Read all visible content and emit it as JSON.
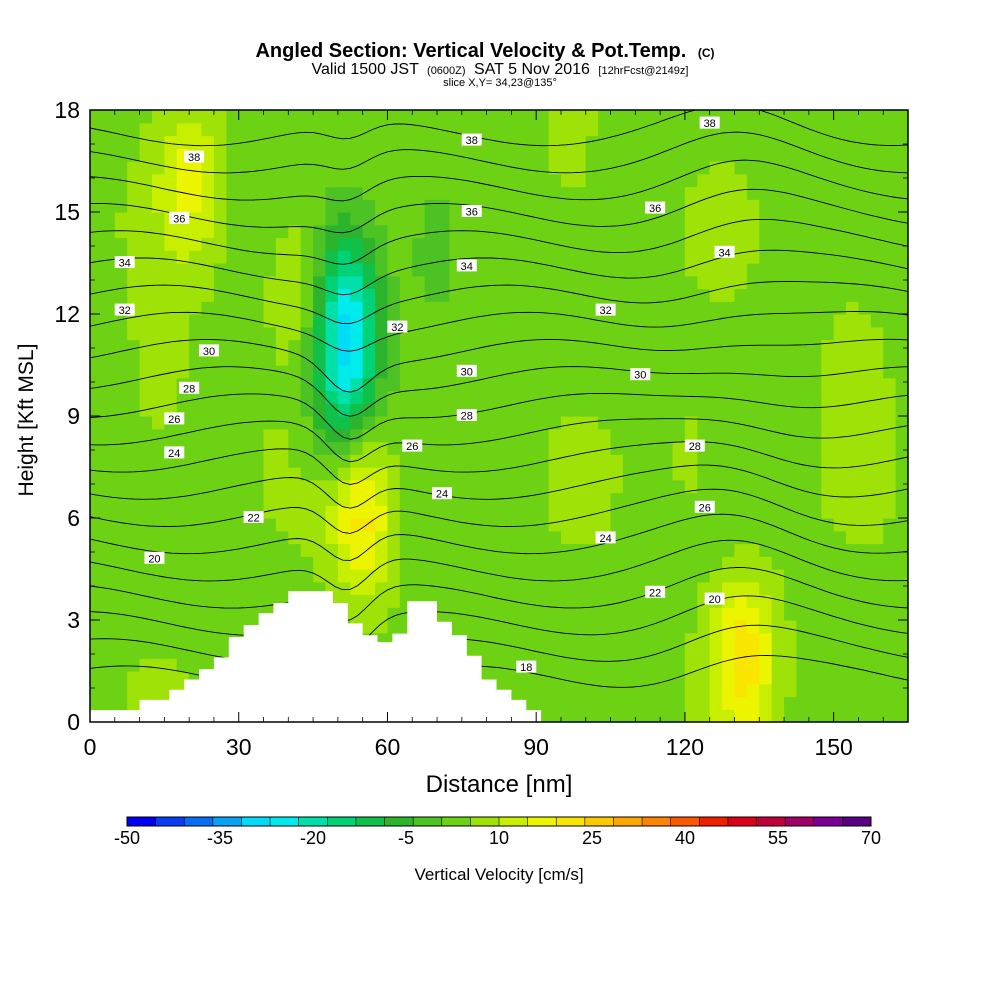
{
  "chart_data": {
    "type": "heatmap",
    "title": "Angled Section: Vertical Velocity & Pot.Temp.",
    "title_units": "(C)",
    "subtitle_parts": [
      "Valid 1500 JST",
      "(0600Z)",
      "SAT 5 Nov 2016",
      "[12hrFcst@2149z]"
    ],
    "slice_label": "slice X,Y= 34,23@135°",
    "xlabel": "Distance [nm]",
    "ylabel": "Height [Kft MSL]",
    "xlim": [
      0,
      165
    ],
    "ylim": [
      0,
      18
    ],
    "x_ticks": [
      0,
      30,
      60,
      90,
      120,
      150
    ],
    "y_ticks": [
      0,
      3,
      6,
      9,
      12,
      15,
      18
    ],
    "colorbar": {
      "label": "Vertical Velocity [cm/s]",
      "tick_labels": [
        "-50",
        "-35",
        "-20",
        "-5",
        "10",
        "25",
        "40",
        "55",
        "70"
      ],
      "levels": [
        -50,
        -45,
        -40,
        -35,
        -30,
        -25,
        -20,
        -15,
        -10,
        -5,
        0,
        5,
        10,
        15,
        20,
        25,
        30,
        35,
        40,
        45,
        50,
        55,
        60,
        65,
        70
      ],
      "colors": [
        "#0000f5",
        "#0a3cf5",
        "#0a6ef5",
        "#0aa0f5",
        "#00dcf5",
        "#00ebeb",
        "#00e0a8",
        "#00d278",
        "#10c048",
        "#2cb42c",
        "#4cc224",
        "#6ed214",
        "#9ee208",
        "#c8ee00",
        "#ecf400",
        "#f8e600",
        "#fcc800",
        "#fca800",
        "#fc8400",
        "#fc5800",
        "#f01e00",
        "#dc0018",
        "#c0003a",
        "#a00064",
        "#7a0096",
        "#5a0082"
      ]
    },
    "potential_temperature_contour_labels": [
      {
        "value": 38,
        "x": 21,
        "y": 16.6
      },
      {
        "value": 38,
        "x": 77,
        "y": 17.1
      },
      {
        "value": 38,
        "x": 125,
        "y": 17.6
      },
      {
        "value": 36,
        "x": 18,
        "y": 14.8
      },
      {
        "value": 36,
        "x": 77,
        "y": 15.0
      },
      {
        "value": 36,
        "x": 114,
        "y": 15.1
      },
      {
        "value": 34,
        "x": 7,
        "y": 13.5
      },
      {
        "value": 34,
        "x": 76,
        "y": 13.4
      },
      {
        "value": 34,
        "x": 128,
        "y": 13.8
      },
      {
        "value": 32,
        "x": 7,
        "y": 12.1
      },
      {
        "value": 32,
        "x": 62,
        "y": 11.6
      },
      {
        "value": 32,
        "x": 104,
        "y": 12.1
      },
      {
        "value": 30,
        "x": 24,
        "y": 10.9
      },
      {
        "value": 30,
        "x": 76,
        "y": 10.3
      },
      {
        "value": 30,
        "x": 111,
        "y": 10.2
      },
      {
        "value": 28,
        "x": 20,
        "y": 9.8
      },
      {
        "value": 28,
        "x": 76,
        "y": 9.0
      },
      {
        "value": 28,
        "x": 122,
        "y": 8.1
      },
      {
        "value": 26,
        "x": 17,
        "y": 8.9
      },
      {
        "value": 26,
        "x": 65,
        "y": 8.1
      },
      {
        "value": 26,
        "x": 124,
        "y": 6.3
      },
      {
        "value": 24,
        "x": 17,
        "y": 7.9
      },
      {
        "value": 24,
        "x": 71,
        "y": 6.7
      },
      {
        "value": 24,
        "x": 104,
        "y": 5.4
      },
      {
        "value": 22,
        "x": 33,
        "y": 6.0
      },
      {
        "value": 22,
        "x": 114,
        "y": 3.8
      },
      {
        "value": 20,
        "x": 13,
        "y": 4.8
      },
      {
        "value": 20,
        "x": 126,
        "y": 3.6
      },
      {
        "value": 18,
        "x": 88,
        "y": 1.6
      }
    ],
    "terrain_profile": {
      "x": [
        0,
        10,
        10,
        16,
        16,
        19,
        19,
        22,
        22,
        25,
        25,
        28,
        28,
        31,
        31,
        34,
        34,
        37,
        37,
        40,
        40,
        43,
        43,
        46,
        46,
        49,
        49,
        52,
        52,
        55,
        55,
        58,
        58,
        61,
        61,
        64,
        64,
        67,
        67,
        70,
        70,
        73,
        73,
        76,
        76,
        79,
        79,
        82,
        82,
        85,
        85,
        88,
        88,
        91
      ],
      "y": [
        0.35,
        0.35,
        0.65,
        0.65,
        0.95,
        0.95,
        1.25,
        1.25,
        1.55,
        1.55,
        1.9,
        1.9,
        2.5,
        2.5,
        2.85,
        2.85,
        3.2,
        3.2,
        3.5,
        3.5,
        3.85,
        3.85,
        3.85,
        3.85,
        3.85,
        3.85,
        3.5,
        3.5,
        2.9,
        2.9,
        2.55,
        2.55,
        2.35,
        2.35,
        2.6,
        2.6,
        3.55,
        3.55,
        3.55,
        3.55,
        2.95,
        2.95,
        2.55,
        2.55,
        1.95,
        1.95,
        1.25,
        1.25,
        0.95,
        0.95,
        0.65,
        0.65,
        0.35,
        0.35
      ]
    },
    "velocity_features": [
      {
        "x": 20,
        "y": 16.0,
        "value": 15
      },
      {
        "x": 42,
        "y": 13.0,
        "value": 12
      },
      {
        "x": 52,
        "y": 12.0,
        "value": -25
      },
      {
        "x": 51,
        "y": 9.5,
        "value": -15
      },
      {
        "x": 55,
        "y": 6.2,
        "value": 22
      },
      {
        "x": 132,
        "y": 2.0,
        "value": 22
      },
      {
        "x": 122,
        "y": 7.6,
        "value": 8
      },
      {
        "x": 154,
        "y": 11.0,
        "value": 8
      },
      {
        "x": 14,
        "y": 9.5,
        "value": 8
      },
      {
        "x": 97,
        "y": 16.5,
        "value": 8
      },
      {
        "x": 70,
        "y": 14.0,
        "value": -5
      }
    ]
  }
}
